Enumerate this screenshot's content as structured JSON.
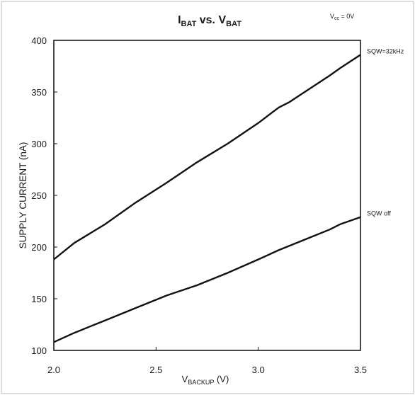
{
  "chart_data": {
    "type": "line",
    "title": {
      "main_a": "I",
      "sub_a": "BAT",
      "vs": " vs. ",
      "main_b": "V",
      "sub_b": "BAT"
    },
    "condition": {
      "main": "V",
      "sub": "cc",
      "rest": " = 0V"
    },
    "xlabel": {
      "main": "V",
      "sub": "BACKUP",
      "rest": " (V)"
    },
    "ylabel": "SUPPLY CURRENT (nA)",
    "xlim": [
      2.0,
      3.5
    ],
    "ylim": [
      100,
      400
    ],
    "x_ticks": [
      "2.0",
      "2.5",
      "3.0",
      "3.5"
    ],
    "y_ticks": [
      "100",
      "150",
      "200",
      "250",
      "300",
      "350",
      "400"
    ],
    "grid": false,
    "legend": "inline labels at right end of lines",
    "series": [
      {
        "name": "SQW=32kHz",
        "x": [
          2.0,
          2.1,
          2.25,
          2.4,
          2.55,
          2.7,
          2.85,
          3.0,
          3.1,
          3.15,
          3.25,
          3.35,
          3.4,
          3.5
        ],
        "values": [
          188,
          204,
          222,
          243,
          262,
          282,
          300,
          320,
          335,
          340,
          353,
          366,
          373,
          386
        ]
      },
      {
        "name": "SQW off",
        "x": [
          2.0,
          2.1,
          2.25,
          2.4,
          2.55,
          2.7,
          2.85,
          3.0,
          3.1,
          3.15,
          3.25,
          3.35,
          3.4,
          3.5
        ],
        "values": [
          108,
          117,
          129,
          141,
          153,
          163,
          175,
          188,
          197,
          201,
          209,
          217,
          222,
          229
        ]
      }
    ]
  }
}
